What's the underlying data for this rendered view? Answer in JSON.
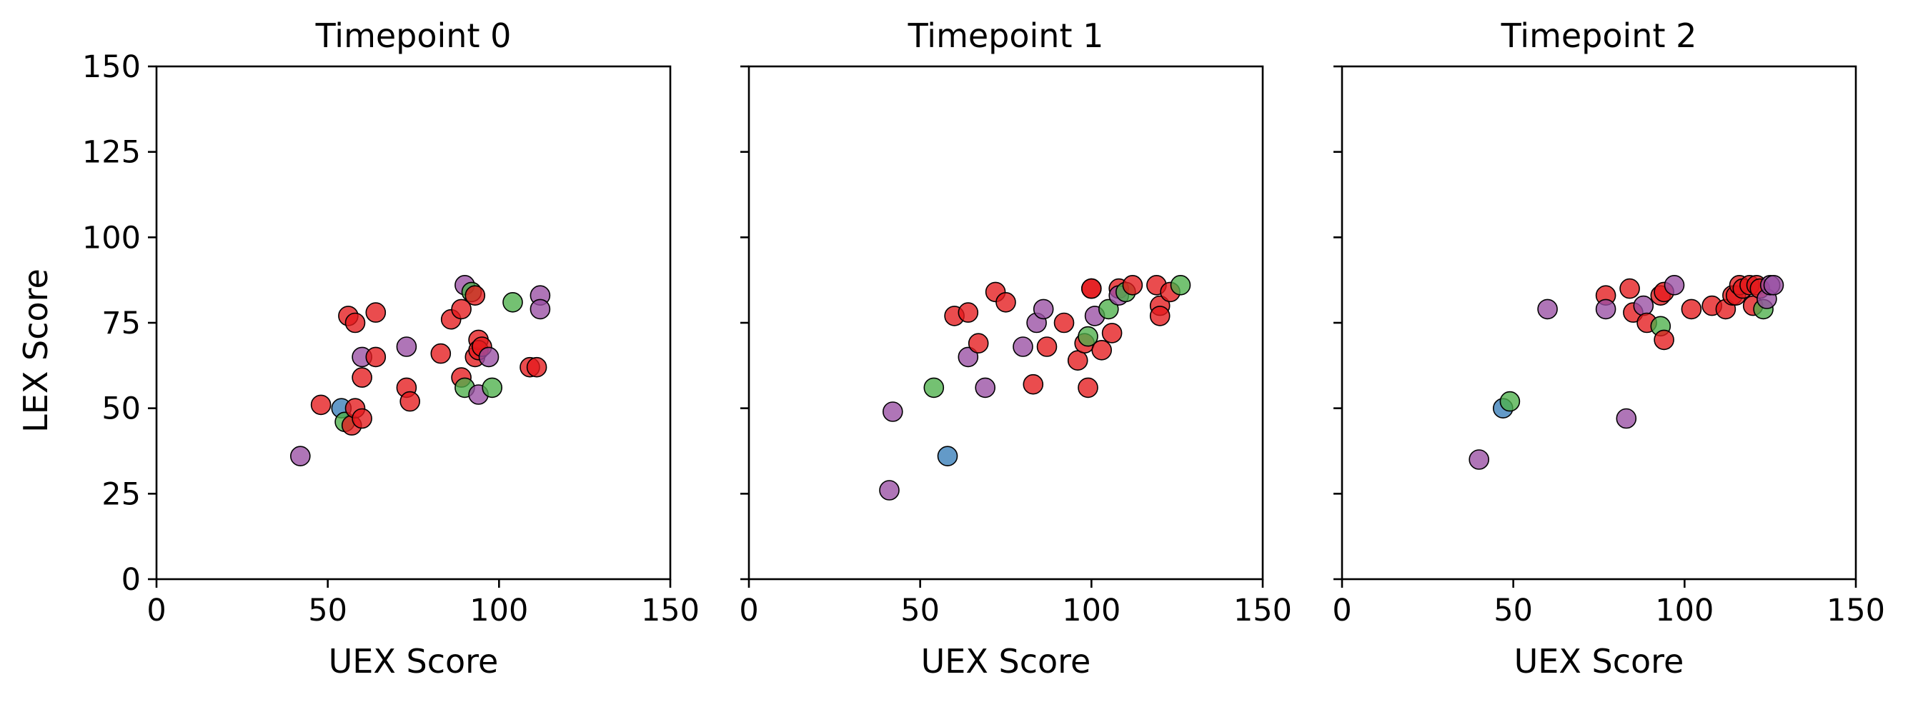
{
  "colors": {
    "red": "#e41a1c",
    "purple": "#984ea3",
    "green": "#4daf4a",
    "blue": "#377eb8"
  },
  "y_axis_label": "LEX Score",
  "chart_data": [
    {
      "type": "scatter",
      "title": "Timepoint 0",
      "xlabel": "UEX Score",
      "ylabel": "LEX Score",
      "xlim": [
        0,
        150
      ],
      "ylim": [
        0,
        150
      ],
      "xticks": [
        "0",
        "50",
        "100",
        "150"
      ],
      "yticks": [
        "0",
        "25",
        "50",
        "75",
        "100",
        "125",
        "150"
      ],
      "grid": false,
      "points": [
        {
          "x": 42,
          "y": 36,
          "color": "purple"
        },
        {
          "x": 48,
          "y": 51,
          "color": "red"
        },
        {
          "x": 54,
          "y": 50,
          "color": "blue"
        },
        {
          "x": 55,
          "y": 46,
          "color": "green"
        },
        {
          "x": 56,
          "y": 77,
          "color": "red"
        },
        {
          "x": 57,
          "y": 45,
          "color": "red"
        },
        {
          "x": 58,
          "y": 75,
          "color": "red"
        },
        {
          "x": 58,
          "y": 50,
          "color": "red"
        },
        {
          "x": 60,
          "y": 47,
          "color": "red"
        },
        {
          "x": 60,
          "y": 59,
          "color": "red"
        },
        {
          "x": 60,
          "y": 65,
          "color": "purple"
        },
        {
          "x": 64,
          "y": 65,
          "color": "red"
        },
        {
          "x": 64,
          "y": 78,
          "color": "red"
        },
        {
          "x": 73,
          "y": 68,
          "color": "purple"
        },
        {
          "x": 73,
          "y": 56,
          "color": "red"
        },
        {
          "x": 74,
          "y": 52,
          "color": "red"
        },
        {
          "x": 83,
          "y": 66,
          "color": "red"
        },
        {
          "x": 86,
          "y": 76,
          "color": "red"
        },
        {
          "x": 89,
          "y": 79,
          "color": "red"
        },
        {
          "x": 89,
          "y": 59,
          "color": "red"
        },
        {
          "x": 90,
          "y": 86,
          "color": "purple"
        },
        {
          "x": 90,
          "y": 56,
          "color": "green"
        },
        {
          "x": 92,
          "y": 84,
          "color": "green"
        },
        {
          "x": 93,
          "y": 83,
          "color": "red"
        },
        {
          "x": 93,
          "y": 65,
          "color": "red"
        },
        {
          "x": 94,
          "y": 54,
          "color": "purple"
        },
        {
          "x": 94,
          "y": 70,
          "color": "red"
        },
        {
          "x": 94,
          "y": 67,
          "color": "red"
        },
        {
          "x": 95,
          "y": 68,
          "color": "red"
        },
        {
          "x": 97,
          "y": 65,
          "color": "purple"
        },
        {
          "x": 98,
          "y": 56,
          "color": "green"
        },
        {
          "x": 104,
          "y": 81,
          "color": "green"
        },
        {
          "x": 109,
          "y": 62,
          "color": "red"
        },
        {
          "x": 111,
          "y": 62,
          "color": "red"
        },
        {
          "x": 112,
          "y": 83,
          "color": "purple"
        },
        {
          "x": 112,
          "y": 79,
          "color": "purple"
        }
      ]
    },
    {
      "type": "scatter",
      "title": "Timepoint 1",
      "xlabel": "UEX Score",
      "ylabel": "",
      "xlim": [
        0,
        150
      ],
      "ylim": [
        0,
        150
      ],
      "xticks": [
        "0",
        "50",
        "100",
        "150"
      ],
      "yticks": [],
      "grid": false,
      "points": [
        {
          "x": 41,
          "y": 26,
          "color": "purple"
        },
        {
          "x": 42,
          "y": 49,
          "color": "purple"
        },
        {
          "x": 54,
          "y": 56,
          "color": "green"
        },
        {
          "x": 58,
          "y": 36,
          "color": "blue"
        },
        {
          "x": 60,
          "y": 77,
          "color": "red"
        },
        {
          "x": 64,
          "y": 78,
          "color": "red"
        },
        {
          "x": 64,
          "y": 65,
          "color": "purple"
        },
        {
          "x": 67,
          "y": 69,
          "color": "red"
        },
        {
          "x": 69,
          "y": 56,
          "color": "purple"
        },
        {
          "x": 72,
          "y": 84,
          "color": "red"
        },
        {
          "x": 75,
          "y": 81,
          "color": "red"
        },
        {
          "x": 80,
          "y": 68,
          "color": "purple"
        },
        {
          "x": 83,
          "y": 57,
          "color": "red"
        },
        {
          "x": 84,
          "y": 75,
          "color": "purple"
        },
        {
          "x": 86,
          "y": 79,
          "color": "purple"
        },
        {
          "x": 87,
          "y": 68,
          "color": "red"
        },
        {
          "x": 92,
          "y": 75,
          "color": "red"
        },
        {
          "x": 96,
          "y": 64,
          "color": "red"
        },
        {
          "x": 98,
          "y": 69,
          "color": "red"
        },
        {
          "x": 99,
          "y": 71,
          "color": "green"
        },
        {
          "x": 99,
          "y": 56,
          "color": "red"
        },
        {
          "x": 100,
          "y": 85,
          "color": "red"
        },
        {
          "x": 100,
          "y": 85,
          "color": "red"
        },
        {
          "x": 101,
          "y": 77,
          "color": "purple"
        },
        {
          "x": 103,
          "y": 67,
          "color": "red"
        },
        {
          "x": 105,
          "y": 79,
          "color": "green"
        },
        {
          "x": 106,
          "y": 72,
          "color": "red"
        },
        {
          "x": 108,
          "y": 85,
          "color": "red"
        },
        {
          "x": 108,
          "y": 83,
          "color": "purple"
        },
        {
          "x": 110,
          "y": 84,
          "color": "green"
        },
        {
          "x": 112,
          "y": 86,
          "color": "red"
        },
        {
          "x": 119,
          "y": 86,
          "color": "red"
        },
        {
          "x": 120,
          "y": 80,
          "color": "red"
        },
        {
          "x": 120,
          "y": 77,
          "color": "red"
        },
        {
          "x": 123,
          "y": 84,
          "color": "red"
        },
        {
          "x": 126,
          "y": 86,
          "color": "green"
        }
      ]
    },
    {
      "type": "scatter",
      "title": "Timepoint 2",
      "xlabel": "UEX Score",
      "ylabel": "",
      "xlim": [
        0,
        150
      ],
      "ylim": [
        0,
        150
      ],
      "xticks": [
        "0",
        "50",
        "100",
        "150"
      ],
      "yticks": [],
      "grid": false,
      "points": [
        {
          "x": 40,
          "y": 35,
          "color": "purple"
        },
        {
          "x": 47,
          "y": 50,
          "color": "blue"
        },
        {
          "x": 49,
          "y": 52,
          "color": "green"
        },
        {
          "x": 60,
          "y": 79,
          "color": "purple"
        },
        {
          "x": 77,
          "y": 83,
          "color": "red"
        },
        {
          "x": 77,
          "y": 79,
          "color": "purple"
        },
        {
          "x": 83,
          "y": 47,
          "color": "purple"
        },
        {
          "x": 84,
          "y": 85,
          "color": "red"
        },
        {
          "x": 85,
          "y": 78,
          "color": "red"
        },
        {
          "x": 88,
          "y": 80,
          "color": "purple"
        },
        {
          "x": 89,
          "y": 75,
          "color": "red"
        },
        {
          "x": 93,
          "y": 83,
          "color": "red"
        },
        {
          "x": 93,
          "y": 74,
          "color": "green"
        },
        {
          "x": 94,
          "y": 70,
          "color": "red"
        },
        {
          "x": 94,
          "y": 84,
          "color": "red"
        },
        {
          "x": 97,
          "y": 86,
          "color": "purple"
        },
        {
          "x": 102,
          "y": 79,
          "color": "red"
        },
        {
          "x": 108,
          "y": 80,
          "color": "red"
        },
        {
          "x": 112,
          "y": 79,
          "color": "red"
        },
        {
          "x": 114,
          "y": 83,
          "color": "red"
        },
        {
          "x": 115,
          "y": 83,
          "color": "red"
        },
        {
          "x": 116,
          "y": 86,
          "color": "red"
        },
        {
          "x": 117,
          "y": 85,
          "color": "red"
        },
        {
          "x": 119,
          "y": 86,
          "color": "red"
        },
        {
          "x": 120,
          "y": 80,
          "color": "red"
        },
        {
          "x": 121,
          "y": 86,
          "color": "red"
        },
        {
          "x": 122,
          "y": 85,
          "color": "red"
        },
        {
          "x": 123,
          "y": 79,
          "color": "green"
        },
        {
          "x": 124,
          "y": 82,
          "color": "purple"
        },
        {
          "x": 125,
          "y": 86,
          "color": "purple"
        },
        {
          "x": 126,
          "y": 86,
          "color": "purple"
        }
      ]
    }
  ]
}
